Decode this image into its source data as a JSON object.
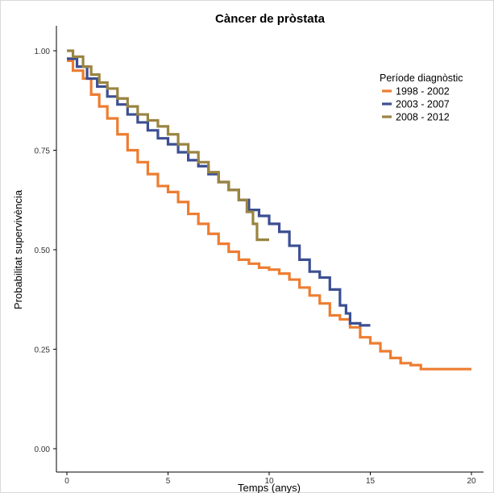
{
  "chart_data": {
    "type": "line",
    "title": "Càncer de pròstata",
    "xlabel": "Temps (anys)",
    "ylabel": "Probabilitat supervivència",
    "xlim": [
      0,
      20
    ],
    "ylim": [
      0,
      1
    ],
    "xticks": [
      0,
      5,
      10,
      15,
      20
    ],
    "yticks": [
      0.0,
      0.25,
      0.5,
      0.75,
      1.0
    ],
    "xtick_labels": [
      "0",
      "5",
      "10",
      "15",
      "20"
    ],
    "ytick_labels": [
      "0.00",
      "0.25",
      "0.50",
      "0.75",
      "1.00"
    ],
    "grid": false,
    "legend_title": "Període diagnòstic",
    "legend_position": "top-right",
    "series": [
      {
        "name": "1998 - 2002",
        "color": "#ED7D31",
        "x": [
          0,
          0.3,
          0.8,
          1.2,
          1.6,
          2.0,
          2.5,
          3.0,
          3.5,
          4.0,
          4.5,
          5.0,
          5.5,
          6.0,
          6.5,
          7.0,
          7.5,
          8.0,
          8.5,
          9.0,
          9.5,
          10.0,
          10.5,
          11.0,
          11.5,
          12.0,
          12.5,
          13.0,
          13.5,
          14.0,
          14.5,
          15.0,
          15.5,
          16.0,
          16.5,
          17.0,
          17.5,
          18.0,
          19.0,
          20.0
        ],
        "y": [
          0.975,
          0.95,
          0.93,
          0.89,
          0.86,
          0.83,
          0.79,
          0.75,
          0.72,
          0.69,
          0.66,
          0.645,
          0.62,
          0.59,
          0.565,
          0.54,
          0.515,
          0.495,
          0.475,
          0.465,
          0.455,
          0.45,
          0.44,
          0.425,
          0.405,
          0.385,
          0.365,
          0.335,
          0.325,
          0.305,
          0.28,
          0.265,
          0.245,
          0.228,
          0.215,
          0.21,
          0.2,
          0.2,
          0.2,
          0.2
        ]
      },
      {
        "name": "2003 - 2007",
        "color": "#3C4F92",
        "x": [
          0,
          0.5,
          1.0,
          1.5,
          2.0,
          2.5,
          3.0,
          3.5,
          4.0,
          4.5,
          5.0,
          5.5,
          6.0,
          6.5,
          7.0,
          7.5,
          8.0,
          8.5,
          9.0,
          9.5,
          10.0,
          10.5,
          11.0,
          11.5,
          12.0,
          12.5,
          13.0,
          13.5,
          13.8,
          14.0,
          14.5,
          15.0
        ],
        "y": [
          0.98,
          0.96,
          0.93,
          0.91,
          0.885,
          0.865,
          0.84,
          0.82,
          0.8,
          0.78,
          0.765,
          0.745,
          0.725,
          0.71,
          0.69,
          0.67,
          0.65,
          0.625,
          0.6,
          0.585,
          0.565,
          0.545,
          0.51,
          0.475,
          0.445,
          0.43,
          0.4,
          0.36,
          0.34,
          0.315,
          0.31,
          0.31
        ]
      },
      {
        "name": "2008 - 2012",
        "color": "#9A8441",
        "x": [
          0,
          0.3,
          0.8,
          1.2,
          1.6,
          2.0,
          2.5,
          3.0,
          3.5,
          4.0,
          4.5,
          5.0,
          5.5,
          6.0,
          6.5,
          7.0,
          7.5,
          8.0,
          8.5,
          8.9,
          9.2,
          9.4,
          10.0
        ],
        "y": [
          1.0,
          0.985,
          0.96,
          0.94,
          0.92,
          0.905,
          0.88,
          0.86,
          0.84,
          0.825,
          0.81,
          0.79,
          0.765,
          0.745,
          0.72,
          0.695,
          0.67,
          0.65,
          0.625,
          0.595,
          0.565,
          0.525,
          0.525
        ]
      }
    ]
  }
}
